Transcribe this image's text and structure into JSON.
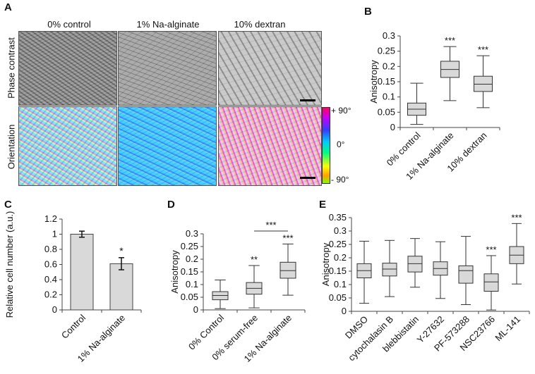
{
  "panels": {
    "A": {
      "letter": "A",
      "columns": [
        "0% control",
        "1% Na-alginate",
        "10% dextran"
      ],
      "rows": [
        "Phase contrast",
        "Orientation"
      ],
      "colorbar": {
        "top": "+ 90°",
        "mid": "0°",
        "bottom": "- 90°"
      }
    },
    "B": {
      "letter": "B"
    },
    "C": {
      "letter": "C"
    },
    "D": {
      "letter": "D"
    },
    "E": {
      "letter": "E"
    }
  },
  "chart_data": [
    {
      "id": "B",
      "type": "boxplot",
      "ylabel": "Anisotropy",
      "ylim": [
        0,
        0.3
      ],
      "yticks": [
        "0",
        "0.05",
        "0.1",
        "0.15",
        "0.2",
        "0.25",
        "0.3"
      ],
      "categories": [
        "0% control",
        "1% Na-alginate",
        "10% dextran"
      ],
      "boxes": [
        {
          "min": 0.01,
          "q1": 0.04,
          "median": 0.06,
          "q3": 0.08,
          "max": 0.145,
          "sig": ""
        },
        {
          "min": 0.088,
          "q1": 0.164,
          "median": 0.19,
          "q3": 0.217,
          "max": 0.265,
          "sig": "***"
        },
        {
          "min": 0.065,
          "q1": 0.118,
          "median": 0.142,
          "q3": 0.168,
          "max": 0.235,
          "sig": "***"
        }
      ]
    },
    {
      "id": "C",
      "type": "bar",
      "ylabel": "Relative cell number (a.u.)",
      "ylim": [
        0,
        1.2
      ],
      "yticks": [
        "0",
        "0.2",
        "0.4",
        "0.6",
        "0.8",
        "1",
        "1.2"
      ],
      "categories": [
        "Control",
        "1% Na-alginate"
      ],
      "values": [
        1.0,
        0.61
      ],
      "errors": [
        0.04,
        0.08
      ],
      "sig": [
        "",
        "*"
      ]
    },
    {
      "id": "D",
      "type": "boxplot",
      "ylabel": "Anisotropy",
      "ylim": [
        0,
        0.3
      ],
      "yticks": [
        "0",
        "0.05",
        "0.1",
        "0.15",
        "0.2",
        "0.25",
        "0.3"
      ],
      "categories": [
        "0% Control",
        "0% serum-free",
        "1% Na-alginate"
      ],
      "boxes": [
        {
          "min": 0.005,
          "q1": 0.04,
          "median": 0.057,
          "q3": 0.072,
          "max": 0.118,
          "sig": ""
        },
        {
          "min": 0.008,
          "q1": 0.062,
          "median": 0.085,
          "q3": 0.108,
          "max": 0.175,
          "sig": "**"
        },
        {
          "min": 0.058,
          "q1": 0.125,
          "median": 0.155,
          "q3": 0.188,
          "max": 0.26,
          "sig": "***"
        }
      ],
      "bracket": {
        "label": "***",
        "from": 1,
        "to": 2
      }
    },
    {
      "id": "E",
      "type": "boxplot",
      "ylabel": "Anisotropy",
      "ylim": [
        0,
        0.35
      ],
      "yticks": [
        "0",
        "0.05",
        "0.1",
        "0.15",
        "0.2",
        "0.25",
        "0.3",
        "0.35"
      ],
      "categories": [
        "DMSO",
        "cytochalasin B",
        "blebbistatin",
        "Y-27632",
        "PF-573288",
        "NSC23766",
        "ML-141"
      ],
      "boxes": [
        {
          "min": 0.03,
          "q1": 0.125,
          "median": 0.152,
          "q3": 0.178,
          "max": 0.262,
          "sig": ""
        },
        {
          "min": 0.055,
          "q1": 0.132,
          "median": 0.158,
          "q3": 0.18,
          "max": 0.265,
          "sig": ""
        },
        {
          "min": 0.09,
          "q1": 0.147,
          "median": 0.178,
          "q3": 0.206,
          "max": 0.272,
          "sig": ""
        },
        {
          "min": 0.048,
          "q1": 0.135,
          "median": 0.16,
          "q3": 0.185,
          "max": 0.26,
          "sig": ""
        },
        {
          "min": 0.025,
          "q1": 0.105,
          "median": 0.152,
          "q3": 0.17,
          "max": 0.28,
          "sig": ""
        },
        {
          "min": 0.005,
          "q1": 0.075,
          "median": 0.11,
          "q3": 0.14,
          "max": 0.208,
          "sig": "***"
        },
        {
          "min": 0.102,
          "q1": 0.178,
          "median": 0.21,
          "q3": 0.242,
          "max": 0.328,
          "sig": "***"
        }
      ]
    }
  ]
}
